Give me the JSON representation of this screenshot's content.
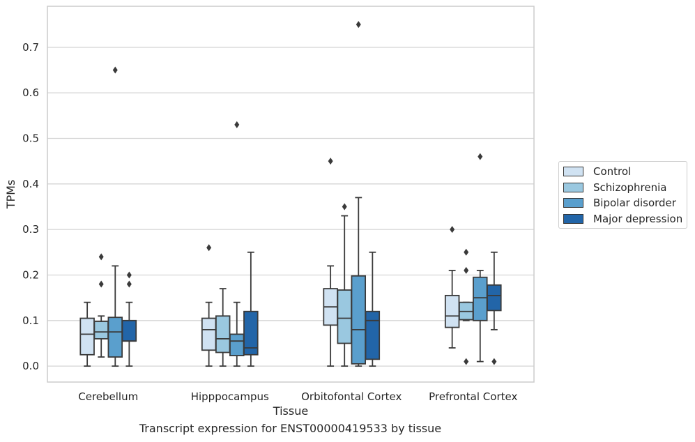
{
  "chart_data": {
    "type": "boxplot",
    "caption": "Transcript expression for ENST00000419533 by tissue",
    "xlabel": "Tissue",
    "ylabel": "TPMs",
    "ylim": [
      -0.035,
      0.79
    ],
    "yticks": [
      "0.0",
      "0.1",
      "0.2",
      "0.3",
      "0.4",
      "0.5",
      "0.6",
      "0.7"
    ],
    "grid": "horizontal",
    "legend_placement": "right",
    "categories": [
      "Cerebellum",
      "Hipppocampus",
      "Orbitofontal Cortex",
      "Prefrontal Cortex"
    ],
    "series": [
      {
        "name": "Control",
        "color": "#d0e2f2",
        "boxes": [
          {
            "whislo": 0.0,
            "q1": 0.025,
            "med": 0.07,
            "q3": 0.105,
            "whishi": 0.14,
            "fliers": []
          },
          {
            "whislo": 0.0,
            "q1": 0.035,
            "med": 0.08,
            "q3": 0.105,
            "whishi": 0.14,
            "fliers": [
              0.26
            ]
          },
          {
            "whislo": 0.0,
            "q1": 0.09,
            "med": 0.13,
            "q3": 0.17,
            "whishi": 0.22,
            "fliers": [
              0.45
            ]
          },
          {
            "whislo": 0.04,
            "q1": 0.085,
            "med": 0.11,
            "q3": 0.155,
            "whishi": 0.21,
            "fliers": [
              0.3
            ]
          }
        ]
      },
      {
        "name": "Schizophrenia",
        "color": "#9ac8e0",
        "boxes": [
          {
            "whislo": 0.02,
            "q1": 0.06,
            "med": 0.075,
            "q3": 0.098,
            "whishi": 0.11,
            "fliers": [
              0.18,
              0.24
            ]
          },
          {
            "whislo": 0.0,
            "q1": 0.03,
            "med": 0.06,
            "q3": 0.11,
            "whishi": 0.17,
            "fliers": []
          },
          {
            "whislo": 0.0,
            "q1": 0.05,
            "med": 0.105,
            "q3": 0.167,
            "whishi": 0.33,
            "fliers": [
              0.35
            ]
          },
          {
            "whislo": 0.1,
            "q1": 0.102,
            "med": 0.12,
            "q3": 0.14,
            "whishi": 0.14,
            "fliers": [
              0.21,
              0.25,
              0.01
            ]
          }
        ]
      },
      {
        "name": "Bipolar disorder",
        "color": "#5a9fcd",
        "boxes": [
          {
            "whislo": 0.0,
            "q1": 0.02,
            "med": 0.075,
            "q3": 0.107,
            "whishi": 0.22,
            "fliers": [
              0.65
            ]
          },
          {
            "whislo": 0.0,
            "q1": 0.023,
            "med": 0.055,
            "q3": 0.07,
            "whishi": 0.14,
            "fliers": [
              0.53
            ]
          },
          {
            "whislo": 0.0,
            "q1": 0.005,
            "med": 0.08,
            "q3": 0.198,
            "whishi": 0.37,
            "fliers": [
              0.75
            ]
          },
          {
            "whislo": 0.01,
            "q1": 0.1,
            "med": 0.15,
            "q3": 0.195,
            "whishi": 0.21,
            "fliers": [
              0.46
            ]
          }
        ]
      },
      {
        "name": "Major depression",
        "color": "#2265a8",
        "boxes": [
          {
            "whislo": 0.0,
            "q1": 0.055,
            "med": 0.055,
            "q3": 0.1,
            "whishi": 0.14,
            "fliers": [
              0.18,
              0.2
            ]
          },
          {
            "whislo": 0.0,
            "q1": 0.025,
            "med": 0.04,
            "q3": 0.12,
            "whishi": 0.25,
            "fliers": []
          },
          {
            "whislo": 0.0,
            "q1": 0.015,
            "med": 0.1,
            "q3": 0.12,
            "whishi": 0.25,
            "fliers": []
          },
          {
            "whislo": 0.08,
            "q1": 0.122,
            "med": 0.155,
            "q3": 0.178,
            "whishi": 0.25,
            "fliers": [
              0.01
            ]
          }
        ]
      }
    ]
  }
}
